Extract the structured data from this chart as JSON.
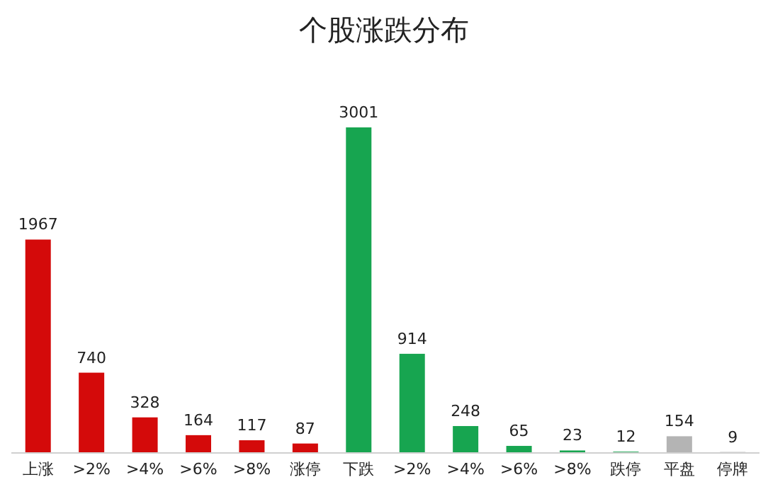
{
  "chart_data": {
    "type": "bar",
    "title": "个股涨跌分布",
    "categories": [
      "上涨",
      ">2%",
      ">4%",
      ">6%",
      ">8%",
      "涨停",
      "下跌",
      ">2%",
      ">4%",
      ">6%",
      ">8%",
      "跌停",
      "平盘",
      "停牌"
    ],
    "values": [
      1967,
      740,
      328,
      164,
      117,
      87,
      3001,
      914,
      248,
      65,
      23,
      12,
      154,
      9
    ],
    "colors": [
      "#d40a0a",
      "#d40a0a",
      "#d40a0a",
      "#d40a0a",
      "#d40a0a",
      "#d40a0a",
      "#17a550",
      "#17a550",
      "#17a550",
      "#17a550",
      "#17a550",
      "#17a550",
      "#b4b4b4",
      "#b4b4b4"
    ],
    "data_labels": true
  }
}
